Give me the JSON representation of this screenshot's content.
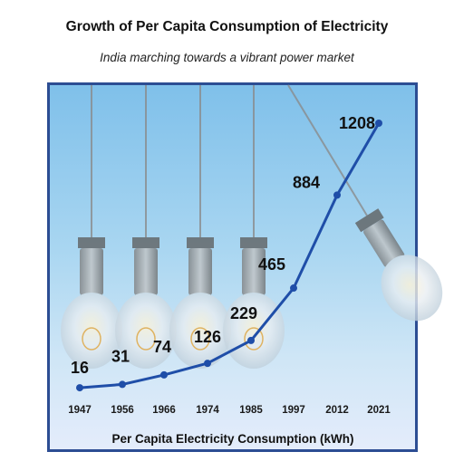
{
  "title": "Growth of Per Capita Consumption of Electricity",
  "subtitle": "India marching towards a vibrant power market",
  "colors": {
    "line": "#1f4ea8",
    "frame": "#2c4d93",
    "text": "#111111"
  },
  "icons": [
    "light-bulb-icon"
  ],
  "chart_data": {
    "type": "line",
    "title": "Growth of Per Capita Consumption of Electricity",
    "subtitle": "India marching towards a vibrant power market",
    "xlabel": "Per Capita Electricity Consumption (kWh)",
    "ylabel": "",
    "categories": [
      "1947",
      "1956",
      "1966",
      "1974",
      "1985",
      "1997",
      "2012",
      "2021"
    ],
    "values": [
      16,
      31,
      74,
      126,
      229,
      465,
      884,
      1208
    ],
    "data_labels": [
      "16",
      "31",
      "74",
      "126",
      "229",
      "465",
      "884",
      "1208"
    ],
    "ylim": [
      0,
      1350
    ],
    "grid": false,
    "legend": "none"
  }
}
